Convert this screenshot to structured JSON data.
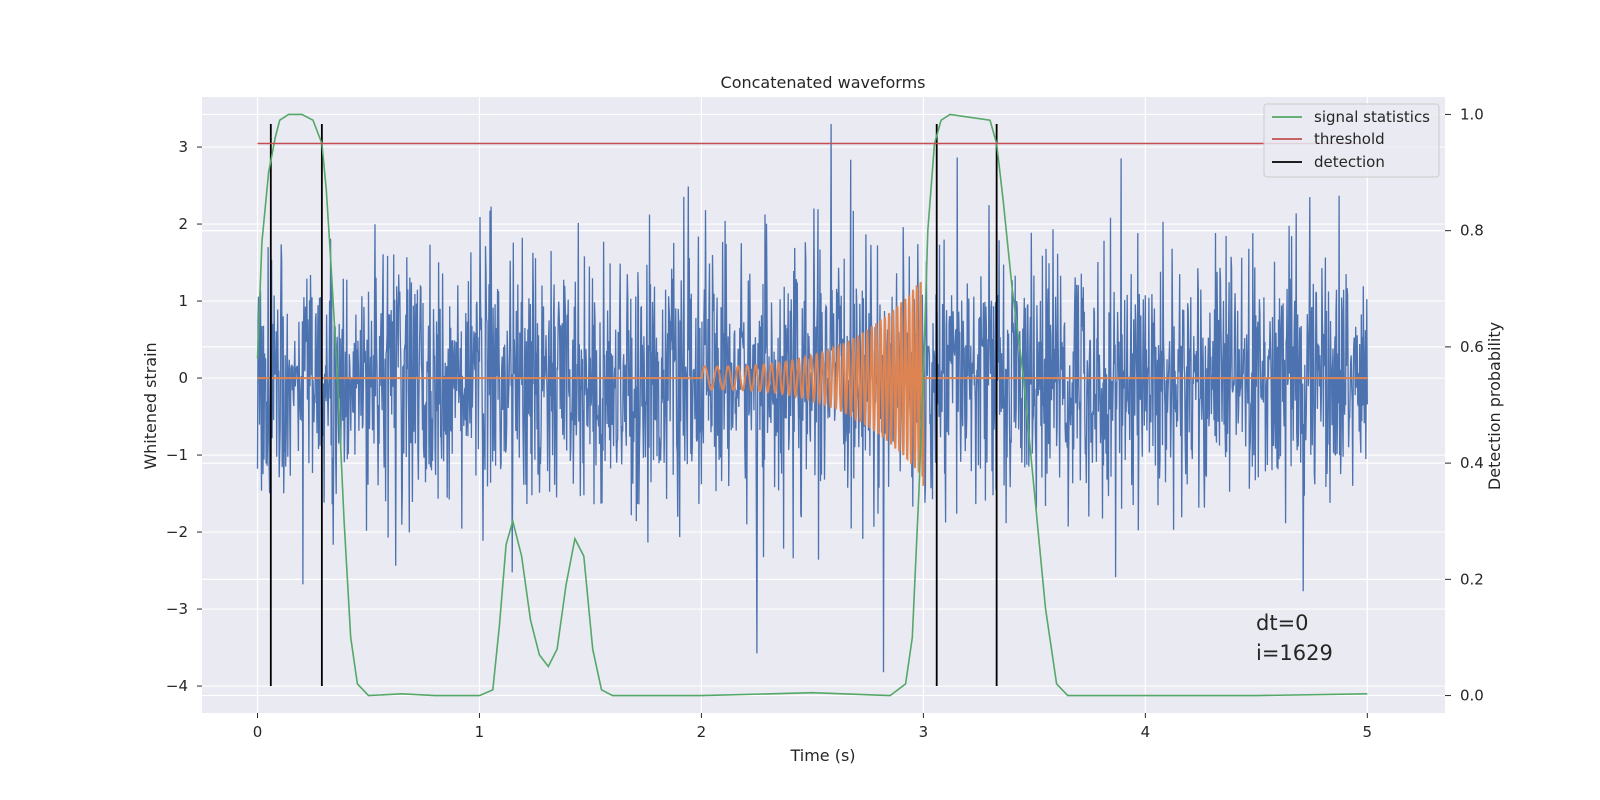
{
  "chart_data": {
    "type": "line",
    "title": "Concatenated waveforms",
    "xlabel": "Time (s)",
    "ylabel": "Whitened strain",
    "y2label": "Detection probability",
    "xlim": [
      -0.25,
      5.35
    ],
    "ylim": [
      -4.35,
      3.65
    ],
    "y2lim": [
      -0.03,
      1.03
    ],
    "x_ticks": [
      0,
      1,
      2,
      3,
      4,
      5
    ],
    "x_tick_labels": [
      "0",
      "1",
      "2",
      "3",
      "4",
      "5"
    ],
    "y_ticks": [
      3,
      2,
      1,
      0,
      -1,
      -2,
      -3,
      -4
    ],
    "y_tick_labels": [
      "3",
      "2",
      "1",
      "0",
      "−1",
      "−2",
      "−3",
      "−4"
    ],
    "y2_ticks": [
      1.0,
      0.8,
      0.6,
      0.4,
      0.2,
      0.0
    ],
    "y2_tick_labels": [
      "1.0",
      "0.8",
      "0.6",
      "0.4",
      "0.2",
      "0.0"
    ],
    "grid": true,
    "legend_position": "top-right",
    "colors": {
      "noise": "#4c72b0",
      "waveform": "#dd8452",
      "signal_statistics": "#55a868",
      "threshold": "#c44e52",
      "detection": "#000000",
      "plot_bg": "#eaeaf2",
      "grid": "#ffffff"
    },
    "series": [
      {
        "name": "signal statistics",
        "axis": "right",
        "color": "#55a868",
        "points": [
          [
            0,
            0.58
          ],
          [
            0.02,
            0.78
          ],
          [
            0.05,
            0.9
          ],
          [
            0.08,
            0.96
          ],
          [
            0.1,
            0.99
          ],
          [
            0.14,
            1.0
          ],
          [
            0.2,
            1.0
          ],
          [
            0.25,
            0.99
          ],
          [
            0.29,
            0.95
          ],
          [
            0.31,
            0.87
          ],
          [
            0.33,
            0.75
          ],
          [
            0.36,
            0.55
          ],
          [
            0.39,
            0.3
          ],
          [
            0.42,
            0.1
          ],
          [
            0.45,
            0.02
          ],
          [
            0.5,
            0.0
          ],
          [
            0.65,
            0.003
          ],
          [
            0.8,
            0.0
          ],
          [
            1.0,
            0.0
          ],
          [
            1.06,
            0.01
          ],
          [
            1.09,
            0.12
          ],
          [
            1.12,
            0.26
          ],
          [
            1.15,
            0.3
          ],
          [
            1.19,
            0.24
          ],
          [
            1.23,
            0.13
          ],
          [
            1.27,
            0.07
          ],
          [
            1.31,
            0.05
          ],
          [
            1.35,
            0.08
          ],
          [
            1.39,
            0.19
          ],
          [
            1.43,
            0.27
          ],
          [
            1.47,
            0.24
          ],
          [
            1.51,
            0.08
          ],
          [
            1.55,
            0.01
          ],
          [
            1.6,
            0.0
          ],
          [
            2.0,
            0.0
          ],
          [
            2.5,
            0.005
          ],
          [
            2.85,
            0.0
          ],
          [
            2.92,
            0.02
          ],
          [
            2.95,
            0.1
          ],
          [
            2.98,
            0.35
          ],
          [
            3.0,
            0.55
          ],
          [
            3.02,
            0.8
          ],
          [
            3.05,
            0.95
          ],
          [
            3.08,
            0.99
          ],
          [
            3.12,
            1.0
          ],
          [
            3.3,
            0.99
          ],
          [
            3.33,
            0.95
          ],
          [
            3.36,
            0.85
          ],
          [
            3.4,
            0.7
          ],
          [
            3.45,
            0.55
          ],
          [
            3.5,
            0.35
          ],
          [
            3.55,
            0.15
          ],
          [
            3.6,
            0.02
          ],
          [
            3.65,
            0.0
          ],
          [
            4.0,
            0.0
          ],
          [
            4.5,
            0.0
          ],
          [
            5.0,
            0.003
          ]
        ]
      },
      {
        "name": "threshold",
        "axis": "right",
        "color": "#c44e52",
        "value": 0.95,
        "x": [
          0,
          5
        ]
      },
      {
        "name": "detection",
        "axis": "left",
        "color": "#000000",
        "x": [
          0.06,
          0.29,
          3.06,
          3.33
        ],
        "y_range": [
          -4.0,
          3.3
        ]
      }
    ],
    "noise": {
      "x_range": [
        0,
        5
      ],
      "typical_amplitude": 1.8,
      "max": 3.3,
      "min": -4.0,
      "color": "#4c72b0"
    },
    "waveform": {
      "x_range": [
        2.0,
        3.0
      ],
      "start_amplitude": 0.15,
      "end_amplitude": 1.3,
      "min": -1.4,
      "color": "#dd8452"
    },
    "annotations": [
      "dt=0",
      "i=1629"
    ]
  }
}
